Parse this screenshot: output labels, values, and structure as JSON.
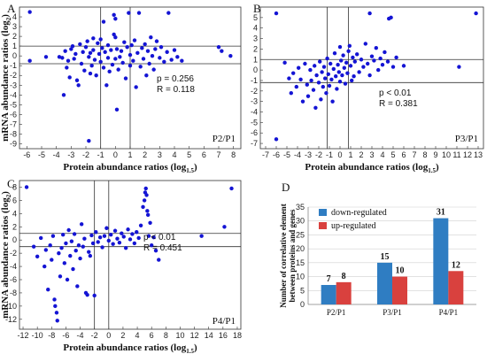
{
  "chart_data": [
    {
      "type": "scatter",
      "panel_label": "A",
      "comparison": "P2/P1",
      "xlabel": "Protein abundance ratios (log",
      "xlabel_sub": "1.5",
      "ylabel": "mRNA abundance ratios (log",
      "ylabel_sub": "2",
      "xlim": [
        -6.5,
        8.5
      ],
      "ylim": [
        -9.5,
        5
      ],
      "xticks": [
        -6,
        -5,
        -4,
        -3,
        -2,
        -1,
        0,
        1,
        2,
        3,
        4,
        5,
        6,
        7,
        8
      ],
      "yticks": [
        -9,
        -8,
        -7,
        -6,
        -5,
        -4,
        -3,
        -2,
        -1,
        0,
        1,
        2,
        3,
        4
      ],
      "ref_x": [
        -1,
        1
      ],
      "ref_y": [
        -0.8,
        1
      ],
      "p_text": "p = 0.256",
      "r_text": "R = 0.118",
      "points": [
        [
          -5.8,
          4.5
        ],
        [
          -5.8,
          -0.5
        ],
        [
          -4.7,
          -0.1
        ],
        [
          -3.8,
          -0.1
        ],
        [
          -3.6,
          -0.2
        ],
        [
          -3.5,
          -4.0
        ],
        [
          -3.4,
          0.5
        ],
        [
          -3.3,
          -1.2
        ],
        [
          -3.2,
          -0.5
        ],
        [
          -3.1,
          -2.2
        ],
        [
          -3.0,
          0.7
        ],
        [
          -2.9,
          1.0
        ],
        [
          -2.8,
          -0.3
        ],
        [
          -2.7,
          0.2
        ],
        [
          -2.6,
          -2.5
        ],
        [
          -2.5,
          -3.0
        ],
        [
          -2.4,
          1.2
        ],
        [
          -2.3,
          -0.8
        ],
        [
          -2.2,
          0.4
        ],
        [
          -2.1,
          -1.5
        ],
        [
          -2.0,
          0.9
        ],
        [
          -1.9,
          1.5
        ],
        [
          -1.8,
          -0.1
        ],
        [
          -1.7,
          0.3
        ],
        [
          -1.7,
          -1.8
        ],
        [
          -1.6,
          -1.0
        ],
        [
          -1.5,
          1.8
        ],
        [
          -1.5,
          0.6
        ],
        [
          -1.4,
          -0.4
        ],
        [
          -1.3,
          -2.0
        ],
        [
          -1.2,
          1.3
        ],
        [
          -1.1,
          0.2
        ],
        [
          -1.0,
          -0.6
        ],
        [
          -1.0,
          1.7
        ],
        [
          -0.9,
          0.8
        ],
        [
          -0.8,
          -1.2
        ],
        [
          -0.8,
          3.5
        ],
        [
          -0.7,
          0.4
        ],
        [
          -0.6,
          -3.0
        ],
        [
          -0.5,
          1.1
        ],
        [
          -0.5,
          -0.2
        ],
        [
          -0.4,
          -1.6
        ],
        [
          -0.3,
          0.6
        ],
        [
          -0.2,
          -0.9
        ],
        [
          -0.1,
          2.2
        ],
        [
          -0.1,
          4.2
        ],
        [
          0.0,
          1.9
        ],
        [
          0.0,
          3.8
        ],
        [
          0.0,
          -0.3
        ],
        [
          0.1,
          0.7
        ],
        [
          0.1,
          -5.5
        ],
        [
          0.2,
          -1.4
        ],
        [
          0.3,
          -0.1
        ],
        [
          0.4,
          0.5
        ],
        [
          0.5,
          -0.7
        ],
        [
          0.6,
          1.4
        ],
        [
          0.7,
          -2.3
        ],
        [
          0.8,
          0.9
        ],
        [
          0.9,
          4.4
        ],
        [
          1.0,
          0.1
        ],
        [
          1.0,
          -1.0
        ],
        [
          1.1,
          1.1
        ],
        [
          1.2,
          -0.5
        ],
        [
          1.3,
          1.6
        ],
        [
          1.4,
          -3.2
        ],
        [
          1.5,
          0.3
        ],
        [
          1.6,
          4.4
        ],
        [
          1.7,
          -1.1
        ],
        [
          1.8,
          0.8
        ],
        [
          1.9,
          -0.3
        ],
        [
          2.0,
          1.2
        ],
        [
          2.1,
          -2.0
        ],
        [
          2.2,
          0.5
        ],
        [
          2.3,
          -0.8
        ],
        [
          2.4,
          1.9
        ],
        [
          2.5,
          0.0
        ],
        [
          2.6,
          -1.4
        ],
        [
          2.7,
          0.7
        ],
        [
          2.8,
          1.5
        ],
        [
          3.0,
          -0.2
        ],
        [
          3.1,
          0.9
        ],
        [
          3.3,
          -0.6
        ],
        [
          3.5,
          0.4
        ],
        [
          3.6,
          4.4
        ],
        [
          3.8,
          -0.4
        ],
        [
          4.0,
          0.6
        ],
        [
          4.2,
          -0.1
        ],
        [
          4.5,
          -0.5
        ],
        [
          7.0,
          0.9
        ],
        [
          7.2,
          0.5
        ],
        [
          7.8,
          0.0
        ],
        [
          -1.8,
          -8.7
        ]
      ]
    },
    {
      "type": "scatter",
      "panel_label": "B",
      "comparison": "P3/P1",
      "xlabel": "Protein abundance ratios (log",
      "xlabel_sub": "1.5",
      "ylabel": "",
      "ylabel_sub": "",
      "xlim": [
        -7.5,
        13.5
      ],
      "ylim": [
        -7.5,
        6
      ],
      "xticks": [
        -7,
        -6,
        -5,
        -4,
        -3,
        -2,
        -1,
        0,
        1,
        2,
        3,
        4,
        5,
        6,
        7,
        8,
        9,
        10,
        11,
        12,
        13
      ],
      "yticks": [
        -7,
        -6,
        -5,
        -4,
        -3,
        -2,
        -1,
        0,
        1,
        2,
        3,
        4,
        5
      ],
      "ref_x": [
        -1.2,
        0.8
      ],
      "ref_y": [
        -1.2,
        1
      ],
      "p_text": "p < 0.01",
      "r_text": "R = 0.381",
      "points": [
        [
          -6.0,
          5.4
        ],
        [
          -6.0,
          -6.6
        ],
        [
          -5.2,
          0.7
        ],
        [
          -4.8,
          -0.8
        ],
        [
          -4.6,
          -2.2
        ],
        [
          -4.4,
          -0.3
        ],
        [
          -4.1,
          -1.6
        ],
        [
          -3.9,
          0.2
        ],
        [
          -3.7,
          -0.9
        ],
        [
          -3.5,
          -3.0
        ],
        [
          -3.3,
          0.6
        ],
        [
          -3.1,
          -1.4
        ],
        [
          -3.0,
          -2.5
        ],
        [
          -2.8,
          0.0
        ],
        [
          -2.7,
          -1.0
        ],
        [
          -2.5,
          -1.9
        ],
        [
          -2.4,
          0.4
        ],
        [
          -2.3,
          -3.6
        ],
        [
          -2.2,
          -0.5
        ],
        [
          -2.0,
          -1.2
        ],
        [
          -1.9,
          0.8
        ],
        [
          -1.8,
          -2.8
        ],
        [
          -1.7,
          -0.2
        ],
        [
          -1.6,
          -1.6
        ],
        [
          -1.5,
          0.3
        ],
        [
          -1.4,
          -0.8
        ],
        [
          -1.3,
          -2.2
        ],
        [
          -1.2,
          1.1
        ],
        [
          -1.1,
          -0.4
        ],
        [
          -1.0,
          -1.5
        ],
        [
          -0.9,
          0.6
        ],
        [
          -0.8,
          -0.9
        ],
        [
          -0.7,
          -3.0
        ],
        [
          -0.6,
          0.1
        ],
        [
          -0.5,
          1.6
        ],
        [
          -0.4,
          -0.6
        ],
        [
          -0.3,
          -1.8
        ],
        [
          -0.2,
          0.5
        ],
        [
          -0.1,
          -0.2
        ],
        [
          0.0,
          2.2
        ],
        [
          0.0,
          -1.1
        ],
        [
          0.1,
          0.9
        ],
        [
          0.2,
          -0.5
        ],
        [
          0.3,
          1.4
        ],
        [
          0.4,
          0.2
        ],
        [
          0.5,
          -1.3
        ],
        [
          0.6,
          0.7
        ],
        [
          0.7,
          -0.3
        ],
        [
          0.8,
          1.8
        ],
        [
          0.9,
          2.3
        ],
        [
          1.0,
          0.4
        ],
        [
          1.1,
          -1.0
        ],
        [
          1.2,
          1.2
        ],
        [
          1.3,
          -0.6
        ],
        [
          1.4,
          0.8
        ],
        [
          1.6,
          1.5
        ],
        [
          1.8,
          -0.2
        ],
        [
          2.0,
          1.0
        ],
        [
          2.2,
          0.3
        ],
        [
          2.4,
          2.5
        ],
        [
          2.6,
          0.6
        ],
        [
          2.8,
          -0.5
        ],
        [
          3.0,
          1.3
        ],
        [
          3.2,
          0.9
        ],
        [
          3.4,
          2.1
        ],
        [
          3.6,
          0.0
        ],
        [
          3.8,
          1.1
        ],
        [
          4.0,
          0.5
        ],
        [
          4.2,
          1.7
        ],
        [
          4.5,
          0.8
        ],
        [
          4.8,
          5.0
        ],
        [
          5.0,
          0.3
        ],
        [
          5.3,
          1.2
        ],
        [
          6.0,
          0.4
        ],
        [
          2.8,
          5.4
        ],
        [
          4.6,
          4.9
        ],
        [
          11.2,
          0.3
        ],
        [
          12.8,
          5.4
        ]
      ]
    },
    {
      "type": "scatter",
      "panel_label": "C",
      "comparison": "P4/P1",
      "xlabel": "Protein abundance ratios (log",
      "xlabel_sub": "1.5",
      "ylabel": "mRNA abundance ratios (log",
      "ylabel_sub": "2",
      "xlim": [
        -12.5,
        18.5
      ],
      "ylim": [
        -13.5,
        9
      ],
      "xticks": [
        -12,
        -10,
        -8,
        -6,
        -4,
        -2,
        0,
        2,
        4,
        6,
        8,
        10,
        12,
        14,
        16,
        18
      ],
      "yticks": [
        -12,
        -10,
        -8,
        -6,
        -4,
        -2,
        0,
        2,
        4,
        6,
        8
      ],
      "ref_x": [
        -2,
        0
      ],
      "ref_y": [
        -1,
        1
      ],
      "p_text": "p < 0.01",
      "r_text": "R = 0.451",
      "points": [
        [
          -11.5,
          8.0
        ],
        [
          -10.5,
          -1.0
        ],
        [
          -10.0,
          -2.5
        ],
        [
          -9.5,
          0.3
        ],
        [
          -9.0,
          -4.0
        ],
        [
          -8.8,
          -1.5
        ],
        [
          -8.5,
          -7.5
        ],
        [
          -8.2,
          -0.8
        ],
        [
          -8.0,
          -3.0
        ],
        [
          -7.8,
          0.6
        ],
        [
          -7.6,
          -9.0
        ],
        [
          -7.5,
          -10.0
        ],
        [
          -7.3,
          -11.0
        ],
        [
          -7.2,
          -12.2
        ],
        [
          -7.0,
          -2.0
        ],
        [
          -6.8,
          -5.5
        ],
        [
          -6.6,
          -1.2
        ],
        [
          -6.4,
          0.8
        ],
        [
          -6.2,
          -3.5
        ],
        [
          -6.0,
          -0.5
        ],
        [
          -5.8,
          -6.0
        ],
        [
          -5.6,
          1.5
        ],
        [
          -5.4,
          -2.4
        ],
        [
          -5.2,
          -0.2
        ],
        [
          -5.0,
          -4.4
        ],
        [
          -4.8,
          0.9
        ],
        [
          -4.6,
          -1.6
        ],
        [
          -4.4,
          -7.0
        ],
        [
          -4.2,
          -0.8
        ],
        [
          -4.0,
          -2.8
        ],
        [
          -3.8,
          2.4
        ],
        [
          -3.6,
          -1.0
        ],
        [
          -3.4,
          0.2
        ],
        [
          -3.2,
          -8.0
        ],
        [
          -3.0,
          -8.3
        ],
        [
          -2.8,
          -1.8
        ],
        [
          -2.6,
          -2.4
        ],
        [
          -2.4,
          0.7
        ],
        [
          -2.2,
          -0.5
        ],
        [
          -2.0,
          -8.4
        ],
        [
          -1.8,
          1.2
        ],
        [
          -1.5,
          -0.3
        ],
        [
          -1.2,
          0.4
        ],
        [
          -0.9,
          -1.1
        ],
        [
          -0.6,
          0.6
        ],
        [
          -0.3,
          1.8
        ],
        [
          0.0,
          -0.1
        ],
        [
          0.3,
          0.8
        ],
        [
          0.6,
          -0.6
        ],
        [
          0.9,
          1.4
        ],
        [
          1.2,
          0.2
        ],
        [
          1.5,
          -0.4
        ],
        [
          1.8,
          1.0
        ],
        [
          2.1,
          0.5
        ],
        [
          2.4,
          -1.2
        ],
        [
          2.7,
          1.6
        ],
        [
          3.0,
          0.1
        ],
        [
          3.3,
          0.9
        ],
        [
          3.6,
          -0.5
        ],
        [
          3.9,
          1.2
        ],
        [
          4.2,
          0.3
        ],
        [
          4.5,
          2.2
        ],
        [
          4.8,
          5.0
        ],
        [
          5.0,
          6.0
        ],
        [
          5.1,
          7.2
        ],
        [
          5.2,
          7.8
        ],
        [
          5.3,
          6.8
        ],
        [
          5.4,
          4.4
        ],
        [
          5.5,
          3.8
        ],
        [
          5.6,
          0.6
        ],
        [
          5.8,
          2.6
        ],
        [
          6.0,
          -0.8
        ],
        [
          6.3,
          0.4
        ],
        [
          6.6,
          -1.6
        ],
        [
          7.0,
          -3.0
        ],
        [
          13.0,
          0.6
        ],
        [
          16.2,
          2.0
        ],
        [
          17.2,
          7.8
        ]
      ]
    },
    {
      "type": "bar",
      "panel_label": "D",
      "ylabel": "Number of correlative element between proteins and genes",
      "ylim": [
        0,
        35
      ],
      "yticks": [
        0,
        5,
        10,
        15,
        20,
        25,
        30,
        35
      ],
      "categories": [
        "P2/P1",
        "P3/P1",
        "P4/P1"
      ],
      "series": [
        {
          "name": "down-regulated",
          "color": "#2f7dc2",
          "values": [
            7,
            15,
            31
          ]
        },
        {
          "name": "up-regulated",
          "color": "#d9413e",
          "values": [
            8,
            10,
            12
          ]
        }
      ],
      "legend_position": "top-left"
    }
  ],
  "colors": {
    "point": "#1414d4",
    "axis": "#333333",
    "grid": "#d0d0d0"
  }
}
